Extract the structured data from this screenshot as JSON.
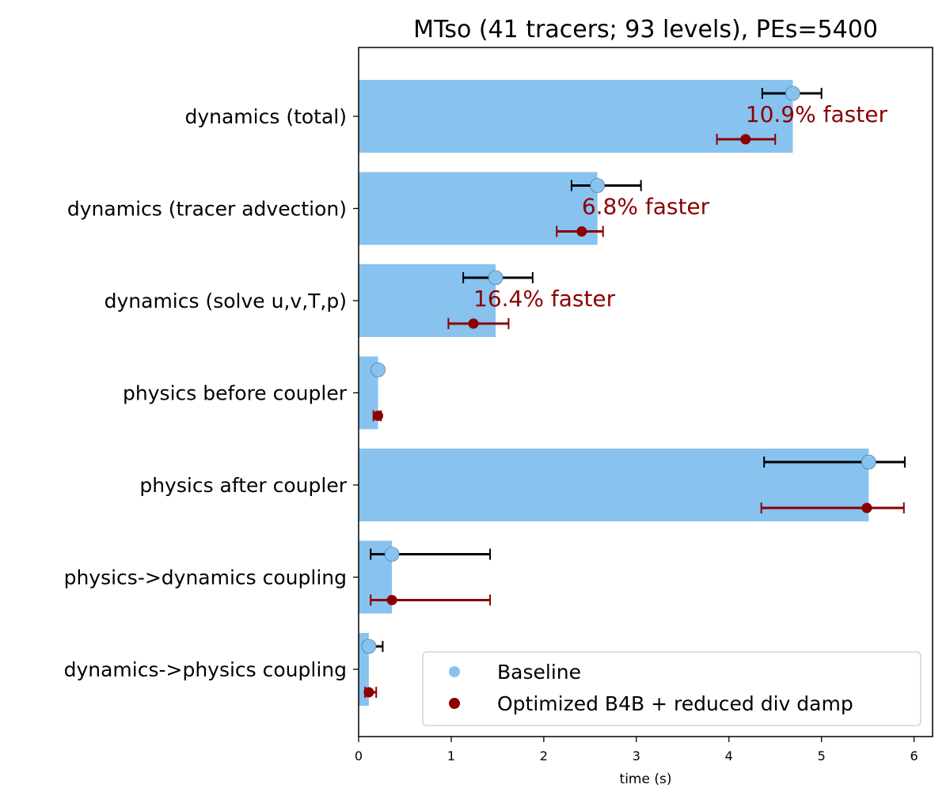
{
  "chart_data": {
    "type": "bar",
    "orientation": "horizontal",
    "title": "MTso (41 tracers; 93 levels), PEs=5400",
    "xlabel": "time (s)",
    "ylabel": "",
    "xlim": [
      0,
      6.2
    ],
    "xticks": [
      0,
      1,
      2,
      3,
      4,
      5,
      6
    ],
    "grid": false,
    "legend_position": "bottom-right",
    "colors": {
      "bar": "#88c2ef",
      "baseline": "#88c2ef",
      "optimized": "#8b0000",
      "baseline_err": "#000000"
    },
    "categories": [
      "dynamics (total)",
      "dynamics (tracer advection)",
      "dynamics (solve u,v,T,p)",
      "physics before coupler",
      "physics after coupler",
      "physics->dynamics coupling",
      "dynamics->physics coupling"
    ],
    "bar_values": [
      4.69,
      2.58,
      1.48,
      0.21,
      5.51,
      0.36,
      0.11
    ],
    "series": [
      {
        "name": "Baseline",
        "values": [
          4.69,
          2.58,
          1.48,
          0.21,
          5.51,
          0.36,
          0.11
        ],
        "err_low": [
          4.36,
          2.3,
          1.13,
          0.17,
          4.38,
          0.13,
          0.06
        ],
        "err_high": [
          5.0,
          3.05,
          1.88,
          0.24,
          5.9,
          1.42,
          0.26
        ]
      },
      {
        "name": "Optimized B4B + reduced div damp",
        "values": [
          4.18,
          2.41,
          1.24,
          0.21,
          5.49,
          0.36,
          0.11
        ],
        "err_low": [
          3.87,
          2.14,
          0.97,
          0.16,
          4.35,
          0.13,
          0.07
        ],
        "err_high": [
          4.5,
          2.64,
          1.62,
          0.24,
          5.89,
          1.42,
          0.19
        ]
      }
    ],
    "annotations": [
      {
        "category_index": 0,
        "text": "10.9% faster",
        "x": 4.18
      },
      {
        "category_index": 1,
        "text": "6.8% faster",
        "x": 2.41
      },
      {
        "category_index": 2,
        "text": "16.4% faster",
        "x": 1.24
      }
    ]
  }
}
